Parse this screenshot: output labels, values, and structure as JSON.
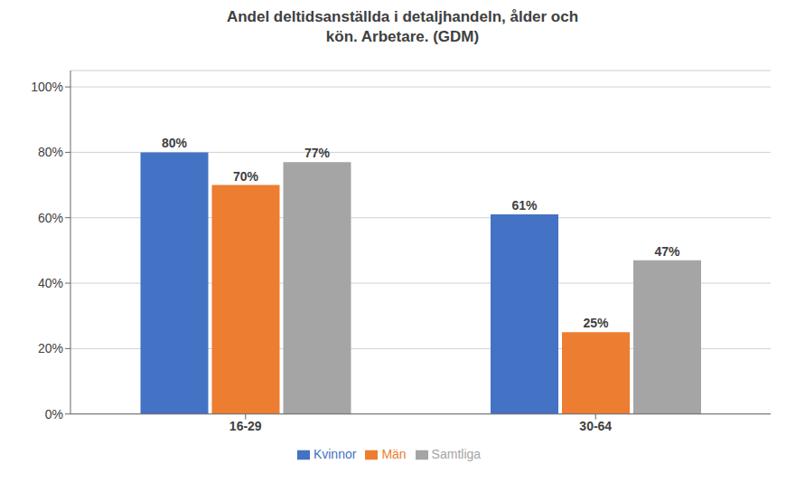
{
  "chart_data": {
    "type": "bar",
    "title": "Andel deltidsanställda i detaljhandeln, ålder och\nkön. Arbetare. (GDM)",
    "categories": [
      "16-29",
      "30-64"
    ],
    "series": [
      {
        "name": "Kvinnor",
        "color": "#4472C4",
        "values": [
          0.8,
          0.61
        ],
        "value_labels": [
          "80%",
          "61%"
        ]
      },
      {
        "name": "Män",
        "color": "#ED7D31",
        "values": [
          0.7,
          0.25
        ],
        "value_labels": [
          "70%",
          "25%"
        ]
      },
      {
        "name": "Samtliga",
        "color": "#A5A5A5",
        "values": [
          0.77,
          0.47
        ],
        "value_labels": [
          "77%",
          "47%"
        ]
      }
    ],
    "ylim": [
      0,
      1.05
    ],
    "yticks": [
      {
        "value": 0.0,
        "label": "0%"
      },
      {
        "value": 0.2,
        "label": "20%"
      },
      {
        "value": 0.4,
        "label": "40%"
      },
      {
        "value": 0.6,
        "label": "60%"
      },
      {
        "value": 0.8,
        "label": "80%"
      },
      {
        "value": 1.0,
        "label": "100%"
      }
    ],
    "grid": true,
    "legend": "bottom",
    "data_labels": true
  }
}
